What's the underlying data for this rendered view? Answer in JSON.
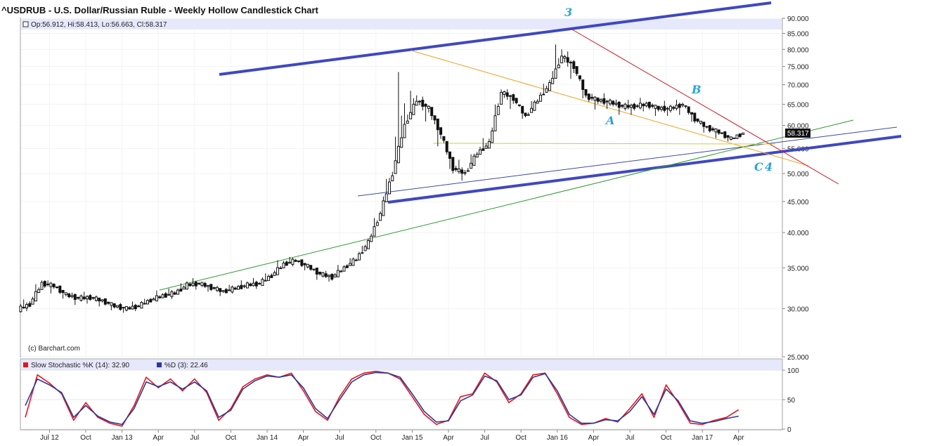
{
  "chart_title": "^USDRUB - U.S. Dollar/Russian Ruble - Weekly Hollow Candlestick Chart",
  "ohlc_readout": "Op:56.912, Hi:58.413, Lo:56.663, Cl:58.317",
  "last_price_label": "58.317",
  "copyright": "(c) Barchart.com",
  "stoch_legend": {
    "k_label": "Slow Stochastic %K (14): 32.90",
    "d_label": "%D (3): 22.46",
    "k_color": "#e8141c",
    "d_color": "#2a3a9c"
  },
  "colors": {
    "channel_blue": "#3f48c0",
    "thin_blue": "#3c4aa8",
    "green_trend": "#2e9a2e",
    "orange_line": "#f0a020",
    "red_line": "#cc1a2a",
    "yellow_line": "#c8d23a",
    "wave_label": "#2aa3d6",
    "candle": "#111111",
    "header_band": "#e6e8fb"
  },
  "wave_labels": [
    "3",
    "A",
    "B",
    "C",
    "4"
  ],
  "chart_data": [
    {
      "type": "candlestick",
      "title": "^USDRUB - U.S. Dollar/Russian Ruble - Weekly Hollow Candlestick Chart",
      "scale": "log",
      "ylim": [
        25,
        90
      ],
      "yticks": [
        "25.000",
        "30.000",
        "35.000",
        "40.000",
        "45.000",
        "50.000",
        "55.000",
        "60.000",
        "65.000",
        "70.000",
        "75.000",
        "80.000",
        "85.000",
        "90.000"
      ],
      "xlabels": [
        "Jul 12",
        "Oct",
        "Jan 13",
        "Apr",
        "Jul",
        "Oct",
        "Jan 14",
        "Apr",
        "Jul",
        "Oct",
        "Jan 15",
        "Apr",
        "Jul",
        "Oct",
        "Jan 16",
        "Apr",
        "Jul",
        "Oct",
        "Jan 17",
        "Apr"
      ],
      "x": [
        "2012-05",
        "2012-06",
        "2012-07",
        "2012-08",
        "2012-09",
        "2012-10",
        "2012-11",
        "2012-12",
        "2013-01",
        "2013-02",
        "2013-03",
        "2013-04",
        "2013-05",
        "2013-06",
        "2013-07",
        "2013-08",
        "2013-09",
        "2013-10",
        "2013-11",
        "2013-12",
        "2014-01",
        "2014-02",
        "2014-03",
        "2014-04",
        "2014-05",
        "2014-06",
        "2014-07",
        "2014-08",
        "2014-09",
        "2014-10",
        "2014-11",
        "2014-12",
        "2015-01",
        "2015-02",
        "2015-03",
        "2015-04",
        "2015-05",
        "2015-06",
        "2015-07",
        "2015-08",
        "2015-09",
        "2015-10",
        "2015-11",
        "2015-12",
        "2016-01",
        "2016-02",
        "2016-03",
        "2016-04",
        "2016-05",
        "2016-06",
        "2016-07",
        "2016-08",
        "2016-09",
        "2016-10",
        "2016-11",
        "2016-12",
        "2017-01",
        "2017-02",
        "2017-03",
        "2017-04"
      ],
      "close": [
        30.5,
        33.0,
        32.7,
        31.6,
        31.2,
        31.3,
        30.9,
        30.3,
        30.0,
        30.3,
        31.0,
        31.5,
        31.8,
        32.8,
        33.0,
        32.5,
        32.0,
        32.4,
        32.8,
        33.0,
        34.0,
        35.5,
        36.0,
        35.2,
        34.2,
        33.8,
        35.0,
        36.2,
        38.5,
        43.0,
        50.0,
        60.0,
        66.0,
        64.0,
        58.0,
        51.0,
        50.0,
        54.0,
        56.0,
        68.0,
        66.5,
        62.0,
        66.0,
        70.0,
        78.0,
        75.0,
        67.0,
        66.0,
        65.5,
        64.5,
        64.5,
        65.0,
        64.0,
        64.0,
        65.0,
        61.5,
        59.5,
        58.5,
        57.0,
        58.317
      ],
      "high": [
        31.5,
        34.0,
        33.5,
        32.3,
        32.0,
        32.0,
        31.5,
        30.9,
        30.5,
        30.9,
        31.6,
        32.2,
        32.6,
        33.6,
        33.7,
        33.2,
        32.7,
        33.1,
        33.5,
        33.7,
        35.0,
        36.6,
        36.8,
        36.0,
        35.0,
        34.6,
        35.8,
        37.0,
        39.6,
        44.5,
        53.0,
        80.0,
        72.0,
        67.0,
        62.0,
        55.0,
        53.0,
        56.0,
        58.5,
        71.0,
        69.0,
        65.0,
        68.0,
        73.0,
        86.0,
        80.0,
        70.0,
        68.0,
        67.5,
        66.5,
        66.0,
        66.5,
        65.5,
        65.5,
        66.5,
        63.5,
        61.0,
        60.0,
        58.5,
        58.413
      ],
      "low": [
        29.5,
        32.2,
        31.8,
        30.8,
        30.5,
        30.6,
        30.2,
        29.7,
        29.4,
        29.7,
        30.4,
        30.9,
        31.2,
        32.0,
        32.3,
        31.8,
        31.4,
        31.8,
        32.2,
        32.4,
        33.2,
        34.6,
        35.2,
        34.4,
        33.4,
        33.1,
        34.2,
        35.4,
        37.6,
        41.5,
        46.5,
        53.0,
        61.0,
        60.0,
        54.0,
        48.7,
        48.5,
        51.5,
        54.0,
        65.0,
        63.0,
        60.5,
        62.5,
        67.0,
        74.0,
        70.0,
        64.5,
        63.5,
        63.5,
        62.5,
        62.5,
        63.0,
        62.0,
        62.0,
        62.0,
        59.5,
        58.0,
        57.0,
        56.0,
        56.663
      ]
    },
    {
      "type": "line",
      "title": "Slow Stochastic",
      "ylim": [
        0,
        100
      ],
      "yticks": [
        "0",
        "50",
        "100"
      ],
      "x": [
        "2012-05",
        "2012-06",
        "2012-07",
        "2012-08",
        "2012-09",
        "2012-10",
        "2012-11",
        "2012-12",
        "2013-01",
        "2013-02",
        "2013-03",
        "2013-04",
        "2013-05",
        "2013-06",
        "2013-07",
        "2013-08",
        "2013-09",
        "2013-10",
        "2013-11",
        "2013-12",
        "2014-01",
        "2014-02",
        "2014-03",
        "2014-04",
        "2014-05",
        "2014-06",
        "2014-07",
        "2014-08",
        "2014-09",
        "2014-10",
        "2014-11",
        "2014-12",
        "2015-01",
        "2015-02",
        "2015-03",
        "2015-04",
        "2015-05",
        "2015-06",
        "2015-07",
        "2015-08",
        "2015-09",
        "2015-10",
        "2015-11",
        "2015-12",
        "2016-01",
        "2016-02",
        "2016-03",
        "2016-04",
        "2016-05",
        "2016-06",
        "2016-07",
        "2016-08",
        "2016-09",
        "2016-10",
        "2016-11",
        "2016-12",
        "2017-01",
        "2017-02",
        "2017-03",
        "2017-04"
      ],
      "series": [
        {
          "name": "Slow Stochastic %K (14)",
          "color": "#e8141c",
          "values": [
            20,
            92,
            78,
            60,
            15,
            45,
            20,
            10,
            5,
            40,
            88,
            70,
            85,
            65,
            85,
            62,
            15,
            35,
            72,
            85,
            92,
            88,
            95,
            65,
            30,
            15,
            55,
            85,
            95,
            98,
            95,
            85,
            55,
            25,
            8,
            15,
            55,
            60,
            95,
            80,
            45,
            60,
            92,
            95,
            60,
            20,
            8,
            10,
            18,
            12,
            35,
            60,
            20,
            75,
            45,
            10,
            8,
            15,
            20,
            33
          ]
        },
        {
          "name": "%D (3)",
          "color": "#2a3a9c",
          "values": [
            40,
            85,
            75,
            62,
            20,
            40,
            22,
            12,
            8,
            35,
            80,
            72,
            80,
            68,
            80,
            65,
            20,
            32,
            68,
            82,
            90,
            88,
            92,
            70,
            35,
            18,
            50,
            80,
            92,
            96,
            95,
            88,
            60,
            30,
            12,
            14,
            48,
            58,
            90,
            82,
            50,
            58,
            88,
            94,
            65,
            25,
            10,
            10,
            16,
            14,
            30,
            55,
            25,
            68,
            48,
            14,
            10,
            13,
            18,
            22
          ]
        }
      ]
    }
  ]
}
